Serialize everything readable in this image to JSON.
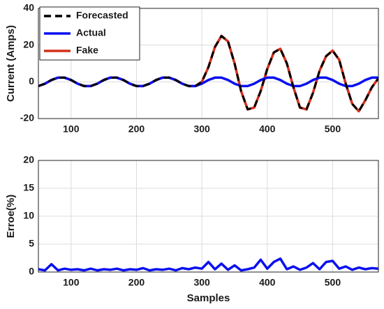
{
  "chart_data": [
    {
      "type": "line",
      "y_label": "Current (Amps)",
      "x": [
        50,
        60,
        70,
        80,
        90,
        100,
        110,
        120,
        130,
        140,
        150,
        160,
        170,
        180,
        190,
        200,
        210,
        220,
        230,
        240,
        250,
        260,
        270,
        280,
        290,
        300,
        310,
        320,
        330,
        340,
        350,
        360,
        370,
        380,
        390,
        400,
        410,
        420,
        430,
        440,
        450,
        460,
        470,
        480,
        490,
        500,
        510,
        520,
        530,
        540,
        550,
        560,
        570
      ],
      "xlim": [
        50,
        570
      ],
      "xticks": [
        100,
        200,
        300,
        400,
        500
      ],
      "ylim": [
        -20,
        40
      ],
      "yticks": [
        -20,
        0,
        20,
        40
      ],
      "grid": true,
      "legend": "upper left",
      "series": [
        {
          "name": "Forecasted",
          "color": "#000000",
          "style": "dashed",
          "values": [
            -2.3,
            -1.0,
            1.0,
            2.3,
            2.3,
            1.0,
            -1.0,
            -2.3,
            -2.3,
            -1.0,
            1.0,
            2.3,
            2.3,
            1.0,
            -1.0,
            -2.3,
            -2.3,
            -1.0,
            1.0,
            2.3,
            2.3,
            1.0,
            -1.0,
            -2.3,
            -2.3,
            0,
            8,
            19,
            25,
            22,
            10,
            -5,
            -15,
            -14,
            -5,
            7,
            16,
            18,
            10,
            -3,
            -14,
            -15,
            -6,
            6,
            14,
            17,
            12,
            -1,
            -12,
            -16,
            -10,
            -3,
            2
          ]
        },
        {
          "name": "Actual",
          "color": "#0a10f0",
          "style": "solid",
          "values": [
            -2.3,
            -1.0,
            1.0,
            2.3,
            2.3,
            1.0,
            -1.0,
            -2.3,
            -2.3,
            -1.0,
            1.0,
            2.3,
            2.3,
            1.0,
            -1.0,
            -2.3,
            -2.3,
            -1.0,
            1.0,
            2.3,
            2.3,
            1.0,
            -1.0,
            -2.3,
            -2.3,
            -1.0,
            1.0,
            2.3,
            2.3,
            1.0,
            -1.0,
            -2.3,
            -2.3,
            -1.0,
            1.0,
            2.3,
            2.3,
            1.0,
            -1.0,
            -2.3,
            -2.3,
            -1.0,
            1.0,
            2.3,
            2.3,
            1.0,
            -1.0,
            -2.3,
            -2.3,
            -1.0,
            1.0,
            2.3,
            2.3
          ]
        },
        {
          "name": "Fake",
          "color": "#d4301c",
          "style": "solid",
          "values": [
            -2.3,
            -1.0,
            1.0,
            2.3,
            2.3,
            1.0,
            -1.0,
            -2.3,
            -2.3,
            -1.0,
            1.0,
            2.3,
            2.3,
            1.0,
            -1.0,
            -2.3,
            -2.3,
            -1.0,
            1.0,
            2.3,
            2.3,
            1.0,
            -1.0,
            -2.3,
            -2.3,
            0,
            8,
            19,
            25,
            22,
            10,
            -5,
            -15,
            -14,
            -5,
            7,
            16,
            18,
            10,
            -3,
            -14,
            -15,
            -6,
            6,
            14,
            17,
            12,
            -1,
            -12,
            -16,
            -10,
            -3,
            2
          ]
        }
      ]
    },
    {
      "type": "line",
      "y_label": "Erroe(%)",
      "x_label": "Samples",
      "x": [
        50,
        60,
        70,
        80,
        90,
        100,
        110,
        120,
        130,
        140,
        150,
        160,
        170,
        180,
        190,
        200,
        210,
        220,
        230,
        240,
        250,
        260,
        270,
        280,
        290,
        300,
        310,
        320,
        330,
        340,
        350,
        360,
        370,
        380,
        390,
        400,
        410,
        420,
        430,
        440,
        450,
        460,
        470,
        480,
        490,
        500,
        510,
        520,
        530,
        540,
        550,
        560,
        570
      ],
      "xlim": [
        50,
        570
      ],
      "xticks": [
        100,
        200,
        300,
        400,
        500
      ],
      "ylim": [
        0,
        20
      ],
      "yticks": [
        0,
        5,
        10,
        15,
        20
      ],
      "grid": true,
      "series": [
        {
          "color": "#0a10f0",
          "style": "solid",
          "values": [
            0.5,
            0.3,
            1.4,
            0.3,
            0.6,
            0.4,
            0.5,
            0.3,
            0.6,
            0.3,
            0.5,
            0.4,
            0.6,
            0.3,
            0.5,
            0.4,
            0.7,
            0.3,
            0.5,
            0.4,
            0.6,
            0.3,
            0.7,
            0.5,
            0.8,
            0.6,
            1.8,
            0.5,
            1.5,
            0.4,
            1.2,
            0.3,
            0.5,
            0.8,
            2.2,
            0.6,
            1.8,
            2.4,
            0.5,
            1.0,
            0.4,
            0.8,
            1.6,
            0.5,
            1.8,
            2.0,
            0.6,
            1.0,
            0.4,
            0.8,
            0.5,
            0.7,
            0.6
          ]
        }
      ]
    }
  ]
}
